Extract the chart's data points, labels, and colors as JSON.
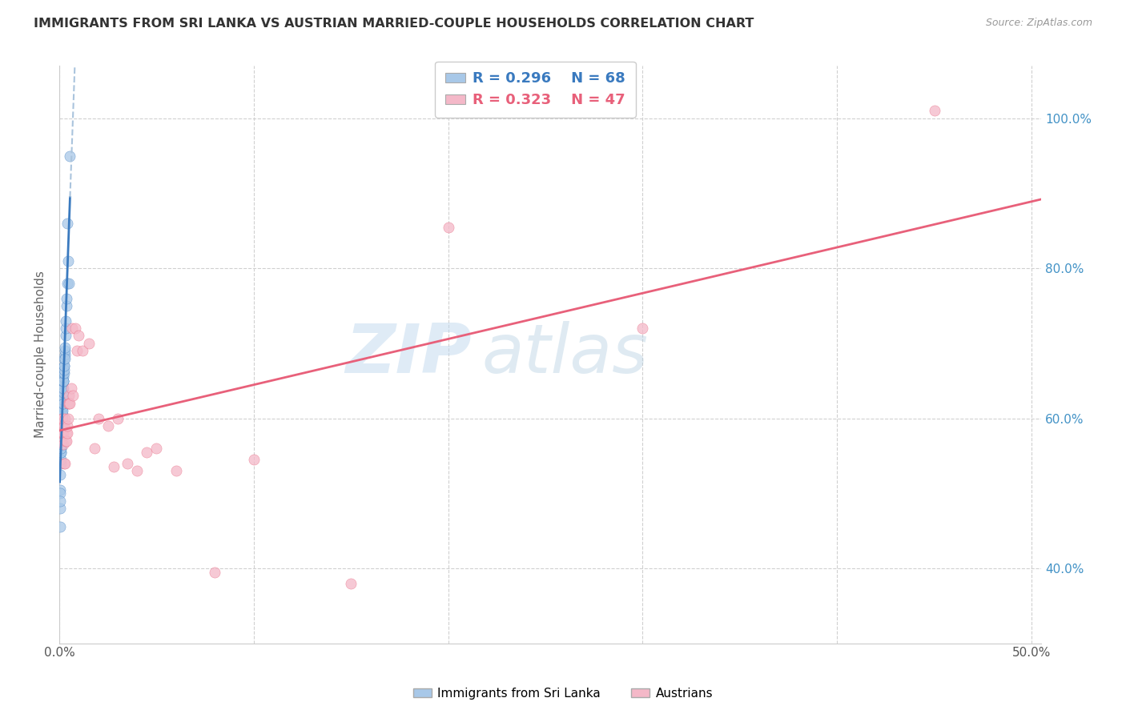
{
  "title": "IMMIGRANTS FROM SRI LANKA VS AUSTRIAN MARRIED-COUPLE HOUSEHOLDS CORRELATION CHART",
  "source": "Source: ZipAtlas.com",
  "ylabel": "Married-couple Households",
  "legend_blue_R": "0.296",
  "legend_blue_N": "68",
  "legend_pink_R": "0.323",
  "legend_pink_N": "47",
  "legend_label_blue": "Immigrants from Sri Lanka",
  "legend_label_pink": "Austrians",
  "blue_color": "#a8c8e8",
  "pink_color": "#f4b8c8",
  "blue_trend_color": "#3a7abf",
  "blue_trend_dash_color": "#aac4dd",
  "pink_trend_color": "#e8607a",
  "watermark_zip": "ZIP",
  "watermark_atlas": "atlas",
  "blue_scatter_x": [
    0.0002,
    0.0003,
    0.0004,
    0.0004,
    0.0005,
    0.0005,
    0.0006,
    0.0006,
    0.0007,
    0.0007,
    0.0007,
    0.0008,
    0.0008,
    0.0008,
    0.0009,
    0.0009,
    0.0009,
    0.001,
    0.001,
    0.001,
    0.001,
    0.0011,
    0.0011,
    0.0012,
    0.0012,
    0.0012,
    0.0013,
    0.0013,
    0.0014,
    0.0014,
    0.0015,
    0.0015,
    0.0015,
    0.0016,
    0.0016,
    0.0016,
    0.0017,
    0.0017,
    0.0018,
    0.0018,
    0.0018,
    0.0019,
    0.0019,
    0.002,
    0.002,
    0.0021,
    0.0021,
    0.0022,
    0.0022,
    0.0023,
    0.0024,
    0.0025,
    0.0025,
    0.0026,
    0.0027,
    0.0028,
    0.0029,
    0.003,
    0.0031,
    0.0032,
    0.0033,
    0.0035,
    0.0038,
    0.004,
    0.0042,
    0.0045,
    0.0048,
    0.0055
  ],
  "blue_scatter_y": [
    0.505,
    0.455,
    0.48,
    0.525,
    0.5,
    0.49,
    0.56,
    0.54,
    0.555,
    0.57,
    0.545,
    0.565,
    0.58,
    0.555,
    0.575,
    0.59,
    0.56,
    0.565,
    0.595,
    0.61,
    0.6,
    0.585,
    0.6,
    0.58,
    0.595,
    0.61,
    0.6,
    0.615,
    0.605,
    0.62,
    0.605,
    0.615,
    0.63,
    0.61,
    0.625,
    0.64,
    0.62,
    0.635,
    0.625,
    0.64,
    0.65,
    0.635,
    0.65,
    0.62,
    0.64,
    0.65,
    0.655,
    0.65,
    0.66,
    0.66,
    0.67,
    0.665,
    0.67,
    0.68,
    0.685,
    0.69,
    0.695,
    0.68,
    0.71,
    0.72,
    0.73,
    0.75,
    0.76,
    0.78,
    0.86,
    0.81,
    0.78,
    0.95
  ],
  "pink_scatter_x": [
    0.0008,
    0.001,
    0.0012,
    0.0014,
    0.0015,
    0.0016,
    0.0018,
    0.002,
    0.0022,
    0.0024,
    0.0025,
    0.0028,
    0.003,
    0.0032,
    0.0035,
    0.0038,
    0.004,
    0.0042,
    0.0044,
    0.0045,
    0.0048,
    0.005,
    0.0055,
    0.006,
    0.0065,
    0.007,
    0.008,
    0.009,
    0.01,
    0.012,
    0.015,
    0.018,
    0.02,
    0.025,
    0.028,
    0.03,
    0.035,
    0.04,
    0.045,
    0.05,
    0.06,
    0.08,
    0.1,
    0.15,
    0.2,
    0.3,
    0.45
  ],
  "pink_scatter_y": [
    0.57,
    0.58,
    0.59,
    0.6,
    0.59,
    0.58,
    0.6,
    0.565,
    0.58,
    0.59,
    0.54,
    0.54,
    0.6,
    0.57,
    0.58,
    0.57,
    0.58,
    0.59,
    0.62,
    0.6,
    0.63,
    0.62,
    0.62,
    0.64,
    0.72,
    0.63,
    0.72,
    0.69,
    0.71,
    0.69,
    0.7,
    0.56,
    0.6,
    0.59,
    0.535,
    0.6,
    0.54,
    0.53,
    0.555,
    0.56,
    0.53,
    0.395,
    0.545,
    0.38,
    0.855,
    0.72,
    1.01
  ],
  "xlim": [
    0.0,
    0.505
  ],
  "ylim": [
    0.3,
    1.07
  ],
  "x_ticks": [
    0.0,
    0.1,
    0.2,
    0.3,
    0.4,
    0.5
  ],
  "x_tick_labels": [
    "0.0%",
    "",
    "",
    "",
    "",
    "50.0%"
  ],
  "y_ticks": [
    0.4,
    0.6,
    0.8,
    1.0
  ],
  "y_tick_labels": [
    "40.0%",
    "60.0%",
    "80.0%",
    "100.0%"
  ]
}
